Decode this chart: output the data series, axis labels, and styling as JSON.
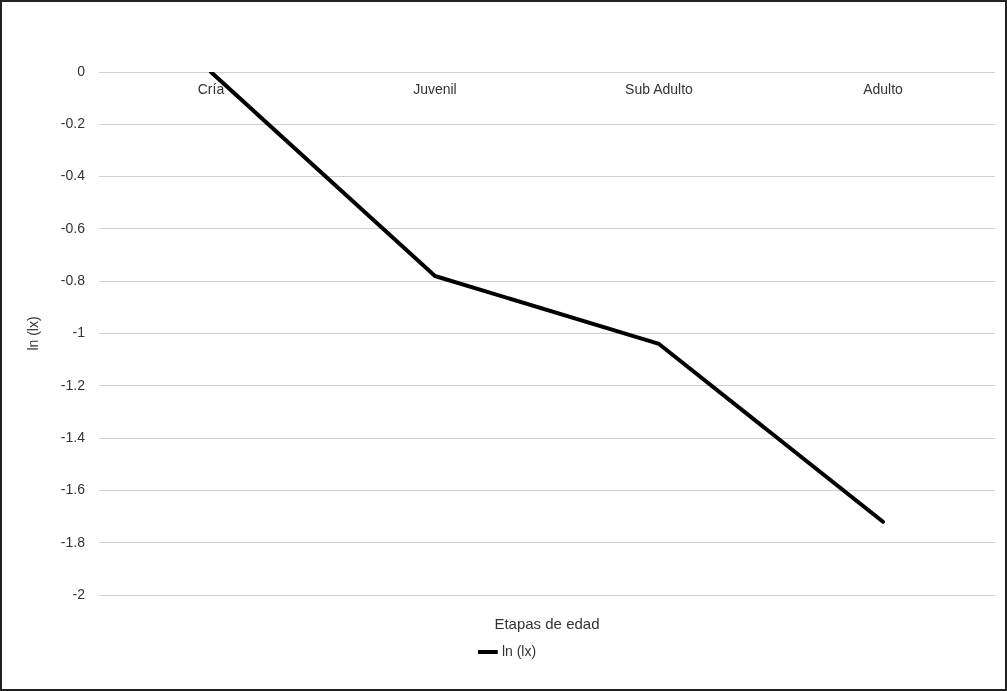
{
  "chart_data": {
    "type": "line",
    "xlabel": "Etapas de edad",
    "ylabel": "ln (lx)",
    "categories": [
      "Cría",
      "Juvenil",
      "Sub Adulto",
      "Adulto"
    ],
    "series": [
      {
        "name": "ln (lx)",
        "color": "#000000",
        "values": [
          0,
          -0.78,
          -1.04,
          -1.72
        ]
      }
    ],
    "ylim": [
      -2,
      0
    ],
    "yticks": [
      0,
      -0.2,
      -0.4,
      -0.6,
      -0.8,
      -1,
      -1.2,
      -1.4,
      -1.6,
      -1.8,
      -2
    ],
    "grid": "y",
    "legend": "bottom",
    "marker": "none",
    "line_style": "solid"
  }
}
